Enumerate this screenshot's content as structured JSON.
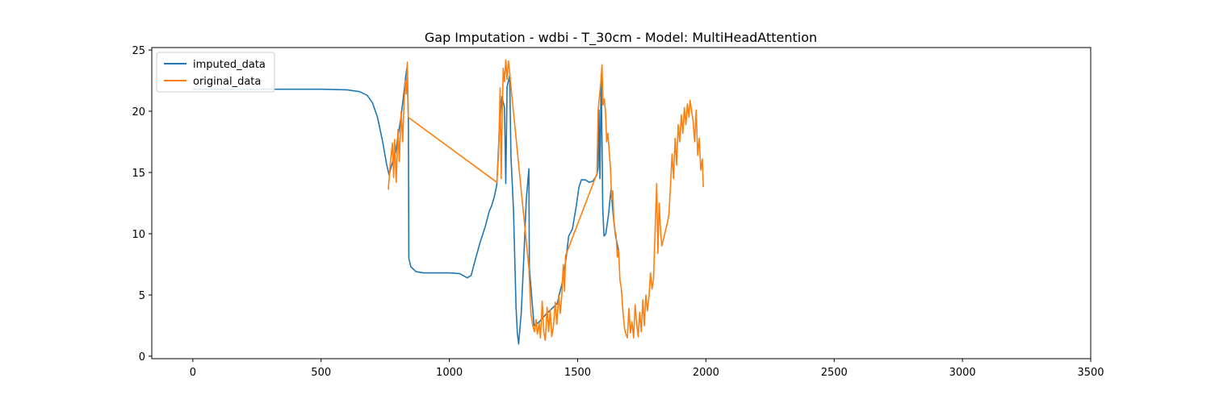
{
  "chart_data": {
    "type": "line",
    "title": "Gap Imputation - wdbi - T_30cm - Model: MultiHeadAttention",
    "xlabel": "",
    "ylabel": "",
    "xlim": [
      -160,
      3500
    ],
    "ylim": [
      -0.2,
      25.2
    ],
    "xticks": [
      0,
      500,
      1000,
      1500,
      2000,
      2500,
      3000,
      3500
    ],
    "yticks": [
      0,
      5,
      10,
      15,
      20,
      25
    ],
    "grid": false,
    "legend_position": "top-left",
    "series": [
      {
        "name": "imputed_data",
        "color": "#1f77b4",
        "points": [
          [
            0,
            21.8
          ],
          [
            100,
            21.8
          ],
          [
            200,
            21.8
          ],
          [
            300,
            21.8
          ],
          [
            400,
            21.8
          ],
          [
            500,
            21.8
          ],
          [
            600,
            21.75
          ],
          [
            650,
            21.6
          ],
          [
            680,
            21.3
          ],
          [
            700,
            20.7
          ],
          [
            720,
            19.5
          ],
          [
            740,
            17.5
          ],
          [
            755,
            15.7
          ],
          [
            765,
            14.8
          ],
          [
            775,
            15.6
          ],
          [
            790,
            16.6
          ],
          [
            800,
            18.0
          ],
          [
            810,
            19.3
          ],
          [
            820,
            21.0
          ],
          [
            830,
            22.9
          ],
          [
            835,
            23.6
          ],
          [
            840,
            19.4
          ],
          [
            842,
            8.0
          ],
          [
            850,
            7.3
          ],
          [
            870,
            6.9
          ],
          [
            900,
            6.8
          ],
          [
            1000,
            6.8
          ],
          [
            1040,
            6.75
          ],
          [
            1070,
            6.4
          ],
          [
            1085,
            6.6
          ],
          [
            1100,
            7.8
          ],
          [
            1120,
            9.3
          ],
          [
            1140,
            10.6
          ],
          [
            1155,
            11.8
          ],
          [
            1165,
            12.3
          ],
          [
            1175,
            13.0
          ],
          [
            1185,
            14.0
          ],
          [
            1195,
            18.6
          ],
          [
            1205,
            21.2
          ],
          [
            1215,
            20.3
          ],
          [
            1220,
            14.1
          ],
          [
            1225,
            22.0
          ],
          [
            1235,
            22.9
          ],
          [
            1240,
            16.3
          ],
          [
            1250,
            12.0
          ],
          [
            1260,
            4.0
          ],
          [
            1265,
            1.9
          ],
          [
            1270,
            1.0
          ],
          [
            1280,
            3.5
          ],
          [
            1290,
            8.0
          ],
          [
            1300,
            12.8
          ],
          [
            1310,
            15.3
          ],
          [
            1312,
            7.2
          ],
          [
            1330,
            2.5
          ],
          [
            1350,
            2.8
          ],
          [
            1380,
            3.5
          ],
          [
            1420,
            4.3
          ],
          [
            1440,
            6.0
          ],
          [
            1455,
            8.0
          ],
          [
            1465,
            9.8
          ],
          [
            1480,
            10.4
          ],
          [
            1495,
            12.3
          ],
          [
            1505,
            13.8
          ],
          [
            1515,
            14.4
          ],
          [
            1530,
            14.4
          ],
          [
            1545,
            14.2
          ],
          [
            1560,
            14.3
          ],
          [
            1575,
            14.8
          ],
          [
            1580,
            15.4
          ],
          [
            1583,
            20.1
          ],
          [
            1587,
            14.5
          ],
          [
            1592,
            23.0
          ],
          [
            1598,
            12.0
          ],
          [
            1603,
            9.8
          ],
          [
            1610,
            10.0
          ],
          [
            1620,
            11.5
          ],
          [
            1630,
            13.6
          ],
          [
            1640,
            11.2
          ],
          [
            1648,
            9.8
          ],
          [
            1660,
            8.6
          ]
        ]
      },
      {
        "name": "original_data",
        "color": "#ff7f0e",
        "points": [
          [
            762,
            13.6
          ],
          [
            770,
            15.8
          ],
          [
            778,
            17.4
          ],
          [
            783,
            14.6
          ],
          [
            787,
            17.7
          ],
          [
            793,
            14.2
          ],
          [
            800,
            18.5
          ],
          [
            805,
            15.9
          ],
          [
            812,
            20.0
          ],
          [
            818,
            17.5
          ],
          [
            822,
            19.9
          ],
          [
            828,
            22.5
          ],
          [
            832,
            21.4
          ],
          [
            836,
            24.0
          ],
          [
            840,
            19.5
          ],
          [
            1185,
            14.2
          ],
          [
            1192,
            16.5
          ],
          [
            1198,
            21.9
          ],
          [
            1202,
            14.5
          ],
          [
            1206,
            19.8
          ],
          [
            1210,
            23.5
          ],
          [
            1215,
            22.4
          ],
          [
            1220,
            24.2
          ],
          [
            1225,
            22.6
          ],
          [
            1230,
            24.1
          ],
          [
            1235,
            23.2
          ],
          [
            1240,
            22.0
          ],
          [
            1310,
            7.2
          ],
          [
            1318,
            3.5
          ],
          [
            1325,
            2.5
          ],
          [
            1332,
            2.0
          ],
          [
            1338,
            3.0
          ],
          [
            1343,
            1.8
          ],
          [
            1350,
            2.7
          ],
          [
            1355,
            1.5
          ],
          [
            1362,
            4.5
          ],
          [
            1368,
            2.0
          ],
          [
            1374,
            1.3
          ],
          [
            1381,
            4.0
          ],
          [
            1387,
            2.0
          ],
          [
            1393,
            3.8
          ],
          [
            1399,
            1.6
          ],
          [
            1406,
            2.5
          ],
          [
            1413,
            4.4
          ],
          [
            1419,
            2.6
          ],
          [
            1426,
            5.0
          ],
          [
            1432,
            3.5
          ],
          [
            1438,
            4.9
          ],
          [
            1444,
            7.5
          ],
          [
            1449,
            5.3
          ],
          [
            1453,
            8.2
          ],
          [
            1575,
            14.9
          ],
          [
            1580,
            20.1
          ],
          [
            1586,
            21.4
          ],
          [
            1591,
            22.5
          ],
          [
            1595,
            23.8
          ],
          [
            1599,
            20.5
          ],
          [
            1604,
            21.0
          ],
          [
            1609,
            19.9
          ],
          [
            1613,
            17.5
          ],
          [
            1618,
            18.2
          ],
          [
            1623,
            16.7
          ],
          [
            1628,
            15.3
          ],
          [
            1633,
            12.8
          ],
          [
            1637,
            13.5
          ],
          [
            1641,
            11.2
          ],
          [
            1646,
            10.2
          ],
          [
            1650,
            9.9
          ],
          [
            1655,
            8.1
          ],
          [
            1660,
            8.6
          ],
          [
            1665,
            6.2
          ],
          [
            1670,
            5.6
          ],
          [
            1676,
            3.8
          ],
          [
            1682,
            2.4
          ],
          [
            1688,
            1.8
          ],
          [
            1694,
            1.5
          ],
          [
            1700,
            3.9
          ],
          [
            1706,
            1.9
          ],
          [
            1712,
            2.8
          ],
          [
            1718,
            1.5
          ],
          [
            1724,
            4.2
          ],
          [
            1730,
            2.7
          ],
          [
            1736,
            1.6
          ],
          [
            1742,
            3.6
          ],
          [
            1748,
            2.0
          ],
          [
            1754,
            4.6
          ],
          [
            1760,
            2.5
          ],
          [
            1766,
            5.0
          ],
          [
            1772,
            3.7
          ],
          [
            1778,
            4.8
          ],
          [
            1784,
            6.8
          ],
          [
            1790,
            5.5
          ],
          [
            1796,
            6.3
          ],
          [
            1802,
            10.2
          ],
          [
            1808,
            14.1
          ],
          [
            1813,
            8.4
          ],
          [
            1818,
            12.5
          ],
          [
            1823,
            10.4
          ],
          [
            1828,
            9.0
          ],
          [
            1850,
            10.9
          ],
          [
            1856,
            11.6
          ],
          [
            1862,
            13.9
          ],
          [
            1868,
            16.5
          ],
          [
            1874,
            14.5
          ],
          [
            1880,
            17.8
          ],
          [
            1886,
            15.6
          ],
          [
            1892,
            18.9
          ],
          [
            1898,
            17.5
          ],
          [
            1904,
            19.7
          ],
          [
            1910,
            18.2
          ],
          [
            1916,
            20.3
          ],
          [
            1922,
            18.9
          ],
          [
            1928,
            20.6
          ],
          [
            1934,
            19.5
          ],
          [
            1938,
            20.9
          ],
          [
            1950,
            19.2
          ],
          [
            1956,
            17.5
          ],
          [
            1962,
            20.1
          ],
          [
            1968,
            16.4
          ],
          [
            1974,
            17.8
          ],
          [
            1980,
            15.2
          ],
          [
            1986,
            16.1
          ],
          [
            1990,
            13.8
          ]
        ]
      }
    ]
  }
}
